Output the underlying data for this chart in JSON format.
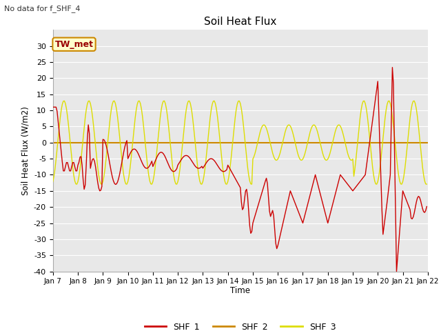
{
  "title": "Soil Heat Flux",
  "subtitle": "No data for f_SHF_4",
  "ylabel": "Soil Heat Flux (W/m2)",
  "xlabel": "Time",
  "annotation": "TW_met",
  "ylim": [
    -40,
    35
  ],
  "x_labels": [
    "Jan 7",
    "Jan 8",
    "Jan 9",
    "Jan 10",
    "Jan 11",
    "Jan 12",
    "Jan 13",
    "Jan 14",
    "Jan 15",
    "Jan 16",
    "Jan 17",
    "Jan 18",
    "Jan 19",
    "Jan 20",
    "Jan 21",
    "Jan 22"
  ],
  "colors": {
    "SHF_1": "#cc0000",
    "SHF_2": "#cc8800",
    "SHF_3": "#dddd00",
    "zero_line": "#cc8800",
    "annotation_bg": "#ffffcc",
    "annotation_border": "#cc8800",
    "background": "#e8e8e8",
    "grid": "#ffffff"
  }
}
